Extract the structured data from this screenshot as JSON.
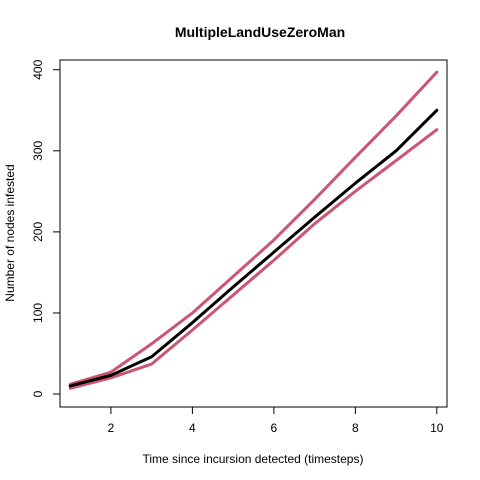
{
  "chart_data": {
    "type": "line",
    "title": "MultipleLandUseZeroMan",
    "xlabel": "Time since incursion detected (timesteps)",
    "ylabel": "Number of nodes infested",
    "xlim": [
      0.75,
      10.25
    ],
    "ylim": [
      -16,
      412
    ],
    "x_ticks": [
      2,
      4,
      6,
      8,
      10
    ],
    "y_ticks": [
      0,
      100,
      200,
      300,
      400
    ],
    "grid": false,
    "x": [
      1,
      2,
      3,
      4,
      5,
      6,
      7,
      8,
      9,
      10
    ],
    "series": [
      {
        "role": "mean",
        "color": "#000000",
        "values": [
          10,
          23,
          46,
          88,
          132,
          175,
          218,
          260,
          300,
          350
        ]
      },
      {
        "role": "upper",
        "color": "#cc5570",
        "values": [
          12,
          27,
          62,
          100,
          145,
          190,
          240,
          292,
          343,
          397
        ]
      },
      {
        "role": "lower",
        "color": "#cc5570",
        "values": [
          7,
          20,
          37,
          79,
          122,
          165,
          210,
          250,
          288,
          326
        ]
      }
    ]
  }
}
